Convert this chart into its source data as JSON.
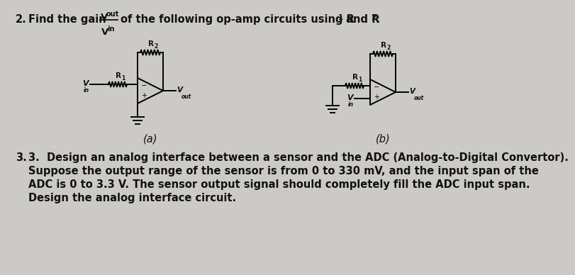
{
  "bg_color": "#cccac6",
  "text_color": "#111111",
  "label_a": "(a)",
  "label_b": "(b)",
  "item3_line1": "3.  Design an analog interface between a sensor and the ADC (Analog-to-Digital Convertor).",
  "item3_line2": "Suppose the output range of the sensor is from 0 to 330 mV, and the input span of the",
  "item3_line3": "ADC is 0 to 3.3 V. The sensor output signal should completely fill the ADC input span.",
  "item3_line4": "Design the analog interface circuit.",
  "font_size_main": 10.5,
  "circuit_lw": 1.4
}
